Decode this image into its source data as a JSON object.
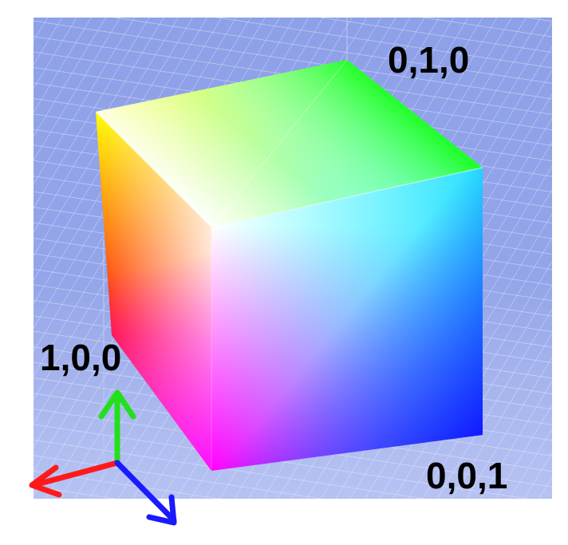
{
  "labels": {
    "corner_010": "0,1,0",
    "corner_100": "1,0,0",
    "corner_001": "0,0,1"
  },
  "colors": {
    "background_grid": "#8ea0e8",
    "grid_line": "#c9d3f7",
    "axis_x": "#ff1a1a",
    "axis_y": "#22e01c",
    "axis_z": "#1a1aff",
    "corner_white": "#ffffff",
    "corner_red": "#ff0000",
    "corner_green": "#00ff00",
    "corner_blue": "#0000ff",
    "corner_yellow": "#ffff00",
    "corner_cyan": "#00ffff",
    "corner_magenta": "#ff00ff"
  }
}
